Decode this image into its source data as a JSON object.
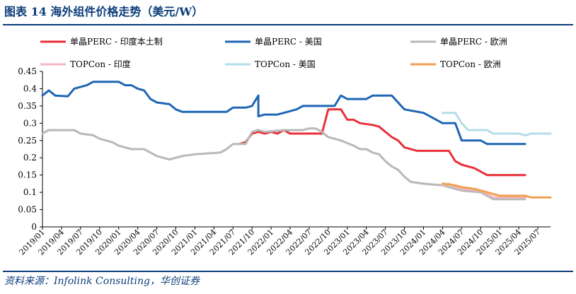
{
  "header": {
    "title": "图表  14    海外组件价格走势（美元/W）"
  },
  "footer": {
    "source": "资料来源：Infolink Consulting，华创证券"
  },
  "colors": {
    "mono_india": "#e8303a",
    "mono_us": "#1f66b5",
    "mono_eu": "#b8b8b8",
    "topcon_india": "#f0b8c2",
    "topcon_us": "#b4dde8",
    "topcon_eu": "#f0a050",
    "rule": "#0b3d7a"
  },
  "chart_data": {
    "type": "line",
    "title": "",
    "ylim": [
      0,
      0.45
    ],
    "yticks": [
      "0",
      "0.05",
      "0.1",
      "0.15",
      "0.2",
      "0.25",
      "0.3",
      "0.35",
      "0.4",
      "0.45"
    ],
    "xlim": [
      "2019/01",
      "2025/09"
    ],
    "xticks": [
      "2019/01",
      "2019/04",
      "2019/07",
      "2019/10",
      "2020/01",
      "2020/04",
      "2020/07",
      "2020/10",
      "2021/01",
      "2021/04",
      "2021/07",
      "2021/10",
      "2022/01",
      "2022/04",
      "2022/07",
      "2022/10",
      "2023/01",
      "2023/04",
      "2023/07",
      "2023/10",
      "2024/01",
      "2024/04",
      "2024/07",
      "2024/10",
      "2025/01",
      "2025/04",
      "2025/07"
    ],
    "grid": false,
    "legend_position": "top",
    "series": [
      {
        "name": "单晶PERC - 印度本土制",
        "color_key": "mono_india",
        "points": [
          [
            "2021/08",
            0.24
          ],
          [
            "2021/09",
            0.245
          ],
          [
            "2021/10",
            0.27
          ],
          [
            "2021/11",
            0.275
          ],
          [
            "2021/12",
            0.27
          ],
          [
            "2022/01",
            0.275
          ],
          [
            "2022/02",
            0.27
          ],
          [
            "2022/03",
            0.28
          ],
          [
            "2022/04",
            0.27
          ],
          [
            "2022/06",
            0.27
          ],
          [
            "2022/09",
            0.27
          ],
          [
            "2022/10",
            0.34
          ],
          [
            "2022/12",
            0.34
          ],
          [
            "2023/01",
            0.31
          ],
          [
            "2023/02",
            0.31
          ],
          [
            "2023/03",
            0.3
          ],
          [
            "2023/05",
            0.295
          ],
          [
            "2023/06",
            0.29
          ],
          [
            "2023/08",
            0.26
          ],
          [
            "2023/09",
            0.25
          ],
          [
            "2023/10",
            0.23
          ],
          [
            "2023/12",
            0.22
          ],
          [
            "2024/05",
            0.22
          ],
          [
            "2024/06",
            0.19
          ],
          [
            "2024/07",
            0.18
          ],
          [
            "2024/09",
            0.17
          ],
          [
            "2024/10",
            0.16
          ],
          [
            "2024/11",
            0.15
          ],
          [
            "2025/05",
            0.15
          ]
        ]
      },
      {
        "name": "单晶PERC - 美国",
        "color_key": "mono_us",
        "points": [
          [
            "2019/01",
            0.38
          ],
          [
            "2019/02",
            0.395
          ],
          [
            "2019/03",
            0.38
          ],
          [
            "2019/05",
            0.378
          ],
          [
            "2019/06",
            0.4
          ],
          [
            "2019/08",
            0.41
          ],
          [
            "2019/09",
            0.42
          ],
          [
            "2020/01",
            0.42
          ],
          [
            "2020/02",
            0.41
          ],
          [
            "2020/03",
            0.41
          ],
          [
            "2020/04",
            0.4
          ],
          [
            "2020/05",
            0.395
          ],
          [
            "2020/06",
            0.37
          ],
          [
            "2020/07",
            0.36
          ],
          [
            "2020/09",
            0.355
          ],
          [
            "2020/10",
            0.34
          ],
          [
            "2020/11",
            0.333
          ],
          [
            "2021/06",
            0.333
          ],
          [
            "2021/07",
            0.345
          ],
          [
            "2021/09",
            0.345
          ],
          [
            "2021/10",
            0.35
          ],
          [
            "2021/11",
            0.38
          ],
          [
            "2021/11",
            0.32
          ],
          [
            "2021/12",
            0.325
          ],
          [
            "2022/02",
            0.325
          ],
          [
            "2022/03",
            0.33
          ],
          [
            "2022/05",
            0.34
          ],
          [
            "2022/06",
            0.35
          ],
          [
            "2022/11",
            0.35
          ],
          [
            "2022/12",
            0.38
          ],
          [
            "2023/01",
            0.37
          ],
          [
            "2023/04",
            0.37
          ],
          [
            "2023/05",
            0.38
          ],
          [
            "2023/08",
            0.38
          ],
          [
            "2023/09",
            0.36
          ],
          [
            "2023/10",
            0.34
          ],
          [
            "2024/01",
            0.33
          ],
          [
            "2024/02",
            0.32
          ],
          [
            "2024/03",
            0.31
          ],
          [
            "2024/04",
            0.3
          ],
          [
            "2024/06",
            0.3
          ],
          [
            "2024/07",
            0.25
          ],
          [
            "2024/10",
            0.25
          ],
          [
            "2024/11",
            0.24
          ],
          [
            "2025/05",
            0.24
          ]
        ]
      },
      {
        "name": "单晶PERC - 欧洲",
        "color_key": "mono_eu",
        "points": [
          [
            "2019/01",
            0.27
          ],
          [
            "2019/02",
            0.28
          ],
          [
            "2019/06",
            0.28
          ],
          [
            "2019/07",
            0.27
          ],
          [
            "2019/09",
            0.265
          ],
          [
            "2019/10",
            0.255
          ],
          [
            "2019/12",
            0.245
          ],
          [
            "2020/01",
            0.235
          ],
          [
            "2020/03",
            0.225
          ],
          [
            "2020/05",
            0.225
          ],
          [
            "2020/06",
            0.215
          ],
          [
            "2020/07",
            0.205
          ],
          [
            "2020/08",
            0.2
          ],
          [
            "2020/09",
            0.195
          ],
          [
            "2020/10",
            0.2
          ],
          [
            "2020/11",
            0.205
          ],
          [
            "2021/01",
            0.21
          ],
          [
            "2021/05",
            0.215
          ],
          [
            "2021/06",
            0.225
          ],
          [
            "2021/07",
            0.24
          ],
          [
            "2021/09",
            0.24
          ],
          [
            "2021/10",
            0.275
          ],
          [
            "2021/11",
            0.28
          ],
          [
            "2021/12",
            0.275
          ],
          [
            "2022/03",
            0.28
          ],
          [
            "2022/06",
            0.28
          ],
          [
            "2022/07",
            0.285
          ],
          [
            "2022/08",
            0.285
          ],
          [
            "2022/09",
            0.275
          ],
          [
            "2022/10",
            0.26
          ],
          [
            "2022/12",
            0.25
          ],
          [
            "2023/02",
            0.235
          ],
          [
            "2023/03",
            0.225
          ],
          [
            "2023/04",
            0.225
          ],
          [
            "2023/05",
            0.215
          ],
          [
            "2023/06",
            0.21
          ],
          [
            "2023/07",
            0.19
          ],
          [
            "2023/08",
            0.175
          ],
          [
            "2023/09",
            0.165
          ],
          [
            "2023/10",
            0.145
          ],
          [
            "2023/11",
            0.13
          ],
          [
            "2024/01",
            0.125
          ],
          [
            "2024/04",
            0.12
          ],
          [
            "2024/06",
            0.11
          ],
          [
            "2024/07",
            0.105
          ],
          [
            "2024/10",
            0.1
          ],
          [
            "2024/11",
            0.09
          ],
          [
            "2024/12",
            0.08
          ],
          [
            "2025/05",
            0.08
          ]
        ]
      },
      {
        "name": "TOPCon - 印度",
        "color_key": "topcon_india",
        "points": [
          [
            "2024/04",
            0.12
          ],
          [
            "2024/05",
            0.125
          ],
          [
            "2024/06",
            0.115
          ],
          [
            "2024/07",
            0.11
          ],
          [
            "2024/10",
            0.105
          ],
          [
            "2024/11",
            0.095
          ],
          [
            "2024/12",
            0.085
          ],
          [
            "2025/05",
            0.085
          ]
        ]
      },
      {
        "name": "TOPCon - 美国",
        "color_key": "topcon_us",
        "points": [
          [
            "2024/04",
            0.33
          ],
          [
            "2024/06",
            0.33
          ],
          [
            "2024/07",
            0.3
          ],
          [
            "2024/08",
            0.28
          ],
          [
            "2024/11",
            0.28
          ],
          [
            "2024/12",
            0.27
          ],
          [
            "2025/04",
            0.27
          ],
          [
            "2025/05",
            0.265
          ],
          [
            "2025/06",
            0.27
          ],
          [
            "2025/09",
            0.27
          ]
        ]
      },
      {
        "name": "TOPCon - 欧洲",
        "color_key": "topcon_eu",
        "points": [
          [
            "2024/04",
            0.125
          ],
          [
            "2024/06",
            0.12
          ],
          [
            "2024/07",
            0.115
          ],
          [
            "2024/09",
            0.11
          ],
          [
            "2024/11",
            0.1
          ],
          [
            "2024/12",
            0.095
          ],
          [
            "2025/01",
            0.09
          ],
          [
            "2025/05",
            0.09
          ],
          [
            "2025/06",
            0.085
          ],
          [
            "2025/09",
            0.085
          ]
        ]
      }
    ]
  }
}
